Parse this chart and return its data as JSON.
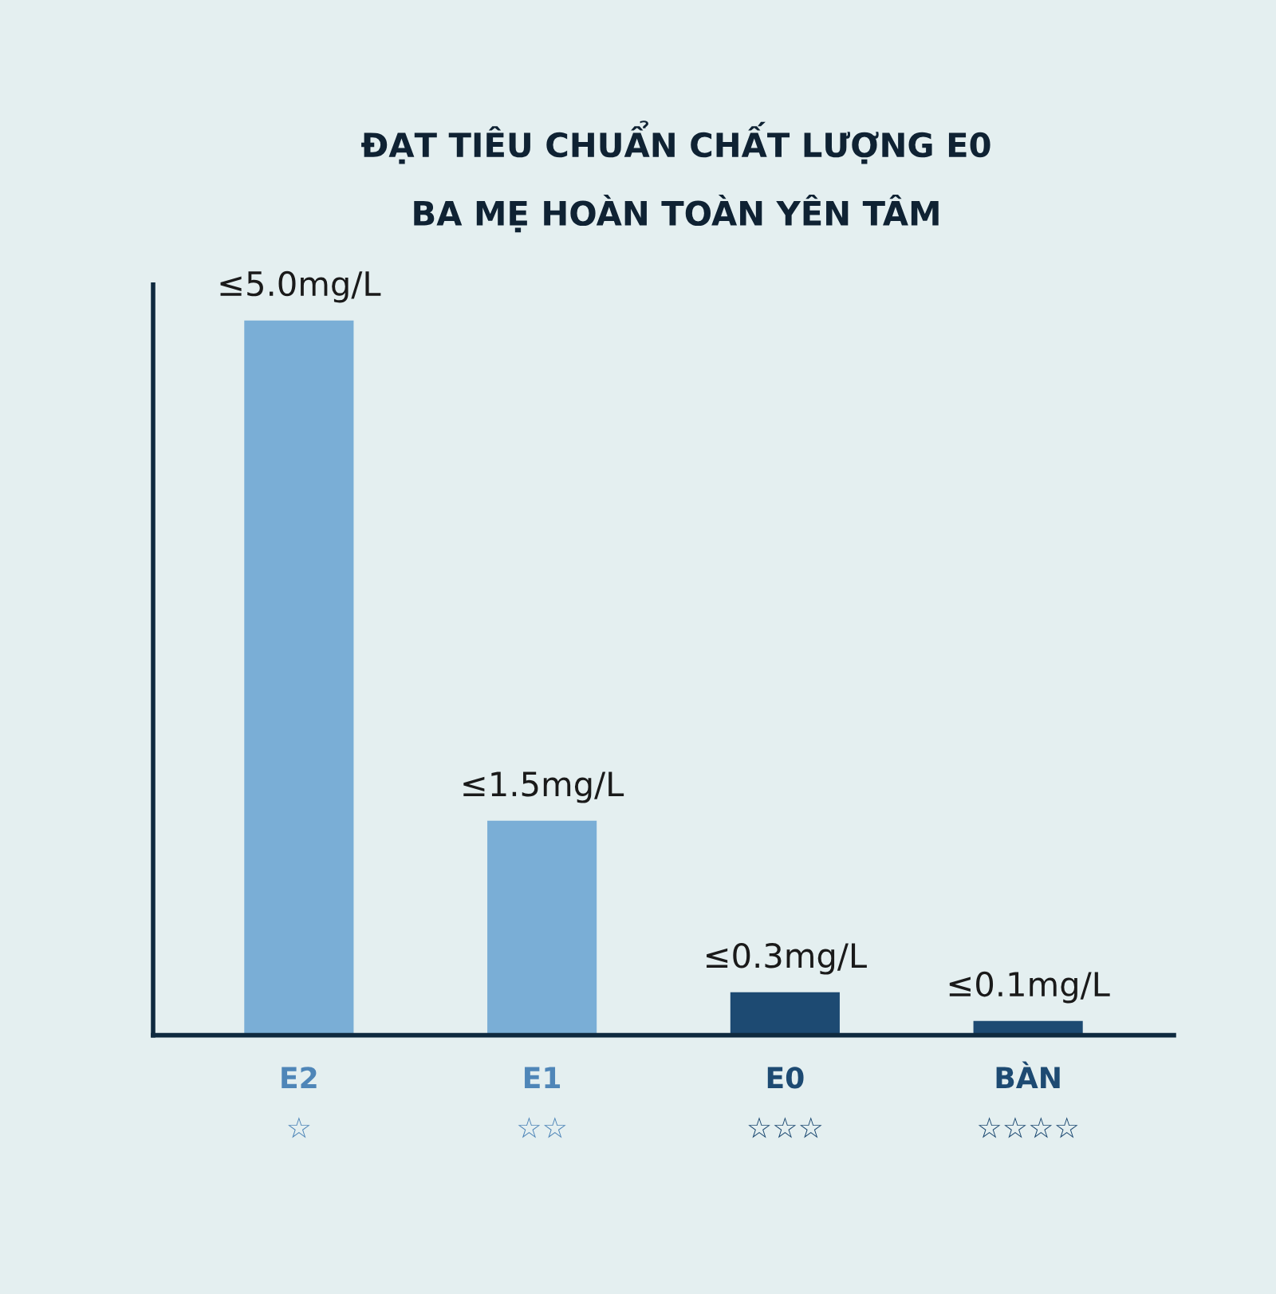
{
  "chart_data": {
    "type": "bar",
    "title": "ĐẠT TIÊU CHUẨN CHẤT LƯỢNG E0",
    "subtitle": "BA MẸ HOÀN TOÀN YÊN TÂM",
    "categories": [
      "E2\n☆",
      "E1\n☆☆",
      "E0\n☆☆☆",
      "BÀN\n☆☆☆☆"
    ],
    "values": [
      5.0,
      1.5,
      0.3,
      0.1
    ],
    "colors": [
      "#7aaed6",
      "#7aaed6",
      "#1d4a72",
      "#1d4a72"
    ],
    "value_labels": [
      "≤5.0mg/L",
      "≤1.5mg/L",
      "≤0.3mg/L",
      "≤0.1mg/L"
    ],
    "grid": false
  }
}
